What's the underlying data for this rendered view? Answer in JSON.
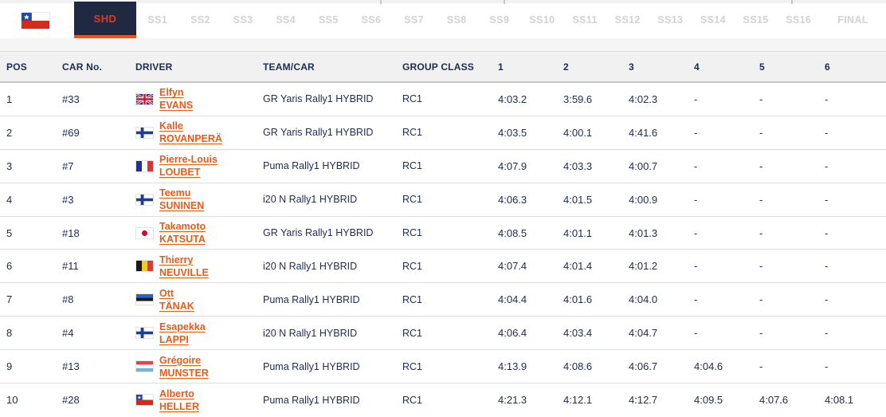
{
  "colors": {
    "accent_orange": "#f4521d",
    "shd_tab_red": "#e23a1c",
    "driver_link_orange": "#ee5a13",
    "text_navy": "#1d2b50",
    "active_tab_navy": "#1f2942",
    "inactive_tab_gray": "#d2d2d2",
    "header_bg": "#f1f1f1",
    "row_border": "#dedede"
  },
  "tab_bar": {
    "event_flag": "cl",
    "tabs": [
      {
        "label": "SHD",
        "active": true
      },
      {
        "label": "SS1",
        "active": false
      },
      {
        "label": "SS2",
        "active": false
      },
      {
        "label": "SS3",
        "active": false
      },
      {
        "label": "SS4",
        "active": false
      },
      {
        "label": "SS5",
        "active": false
      },
      {
        "label": "SS6",
        "active": false
      },
      {
        "label": "SS7",
        "active": false
      },
      {
        "label": "SS8",
        "active": false
      },
      {
        "label": "SS9",
        "active": false
      },
      {
        "label": "SS10",
        "active": false
      },
      {
        "label": "SS11",
        "active": false
      },
      {
        "label": "SS12",
        "active": false
      },
      {
        "label": "SS13",
        "active": false
      },
      {
        "label": "SS14",
        "active": false
      },
      {
        "label": "SS15",
        "active": false
      },
      {
        "label": "SS16",
        "active": false
      },
      {
        "label": "FINAL",
        "active": false
      }
    ]
  },
  "table": {
    "columns": [
      "POS",
      "CAR No.",
      "DRIVER",
      "TEAM/CAR",
      "GROUP CLASS",
      "1",
      "2",
      "3",
      "4",
      "5",
      "6"
    ],
    "rows": [
      {
        "pos": "1",
        "car_no": "#33",
        "flag": "gb",
        "driver_first": "Elfyn",
        "driver_last": "EVANS",
        "team_car": "GR Yaris Rally1 HYBRID",
        "group_class": "RC1",
        "times": [
          "4:03.2",
          "3:59.6",
          "4:02.3",
          "-",
          "-",
          "-"
        ]
      },
      {
        "pos": "2",
        "car_no": "#69",
        "flag": "fi",
        "driver_first": "Kalle",
        "driver_last": "ROVANPERÄ",
        "team_car": "GR Yaris Rally1 HYBRID",
        "group_class": "RC1",
        "times": [
          "4:03.5",
          "4:00.1",
          "4:41.6",
          "-",
          "-",
          "-"
        ]
      },
      {
        "pos": "3",
        "car_no": "#7",
        "flag": "fr",
        "driver_first": "Pierre-Louis",
        "driver_last": "LOUBET",
        "team_car": "Puma Rally1 HYBRID",
        "group_class": "RC1",
        "times": [
          "4:07.9",
          "4:03.3",
          "4:00.7",
          "-",
          "-",
          "-"
        ]
      },
      {
        "pos": "4",
        "car_no": "#3",
        "flag": "fi",
        "driver_first": "Teemu",
        "driver_last": "SUNINEN",
        "team_car": "i20 N Rally1 HYBRID",
        "group_class": "RC1",
        "times": [
          "4:06.3",
          "4:01.5",
          "4:00.9",
          "-",
          "-",
          "-"
        ]
      },
      {
        "pos": "5",
        "car_no": "#18",
        "flag": "jp",
        "driver_first": "Takamoto",
        "driver_last": "KATSUTA",
        "team_car": "GR Yaris Rally1 HYBRID",
        "group_class": "RC1",
        "times": [
          "4:08.5",
          "4:01.1",
          "4:01.3",
          "-",
          "-",
          "-"
        ]
      },
      {
        "pos": "6",
        "car_no": "#11",
        "flag": "be",
        "driver_first": "Thierry",
        "driver_last": "NEUVILLE",
        "team_car": "i20 N Rally1 HYBRID",
        "group_class": "RC1",
        "times": [
          "4:07.4",
          "4:01.4",
          "4:01.2",
          "-",
          "-",
          "-"
        ]
      },
      {
        "pos": "7",
        "car_no": "#8",
        "flag": "ee",
        "driver_first": "Ott",
        "driver_last": "TÄNAK",
        "team_car": "Puma Rally1 HYBRID",
        "group_class": "RC1",
        "times": [
          "4:04.4",
          "4:01.6",
          "4:04.0",
          "-",
          "-",
          "-"
        ]
      },
      {
        "pos": "8",
        "car_no": "#4",
        "flag": "fi",
        "driver_first": "Esapekka",
        "driver_last": "LAPPI",
        "team_car": "i20 N Rally1 HYBRID",
        "group_class": "RC1",
        "times": [
          "4:06.4",
          "4:03.4",
          "4:04.7",
          "-",
          "-",
          "-"
        ]
      },
      {
        "pos": "9",
        "car_no": "#13",
        "flag": "lu",
        "driver_first": "Grégoire",
        "driver_last": "MUNSTER",
        "team_car": "Puma Rally1 HYBRID",
        "group_class": "RC1",
        "times": [
          "4:13.9",
          "4:08.6",
          "4:06.7",
          "4:04.6",
          "-",
          "-"
        ]
      },
      {
        "pos": "10",
        "car_no": "#28",
        "flag": "cl",
        "driver_first": "Alberto",
        "driver_last": "HELLER",
        "team_car": "Puma Rally1 HYBRID",
        "group_class": "RC1",
        "times": [
          "4:21.3",
          "4:12.1",
          "4:12.7",
          "4:09.5",
          "4:07.6",
          "4:08.1"
        ]
      }
    ]
  }
}
